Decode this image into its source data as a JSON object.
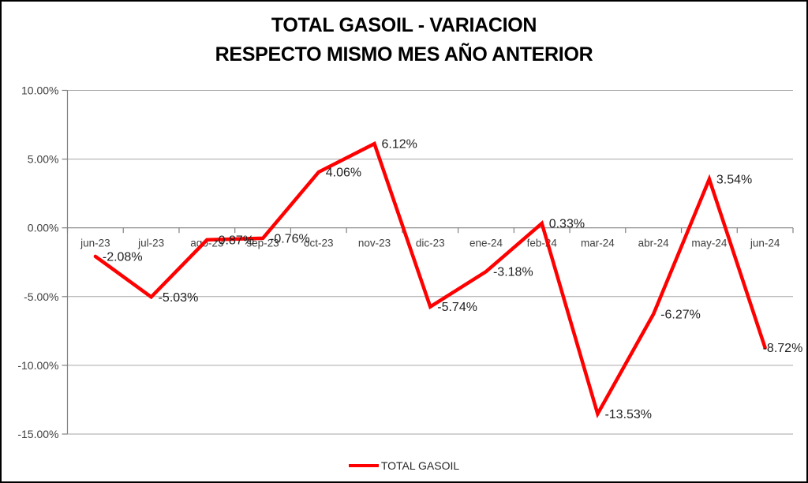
{
  "title": {
    "line1": "TOTAL GASOIL - VARIACION",
    "line2": "RESPECTO MISMO MES AÑO ANTERIOR"
  },
  "legend": {
    "label": "TOTAL GASOIL"
  },
  "colors": {
    "line": "#FF0000",
    "gridline": "#A6A6A6",
    "axis": "#808080",
    "axis_text": "#404040",
    "data_label_text": "#1f1f1f",
    "title_text": "#000000"
  },
  "chart_data": {
    "type": "line",
    "title": "TOTAL GASOIL - VARIACION RESPECTO MISMO MES AÑO ANTERIOR",
    "categories": [
      "jun-23",
      "jul-23",
      "ago-23",
      "sep-23",
      "oct-23",
      "nov-23",
      "dic-23",
      "ene-24",
      "feb-24",
      "mar-24",
      "abr-24",
      "may-24",
      "jun-24"
    ],
    "series": [
      {
        "name": "TOTAL GASOIL",
        "values": [
          -2.08,
          -5.03,
          -0.87,
          -0.76,
          4.06,
          6.12,
          -5.74,
          -3.18,
          0.33,
          -13.53,
          -6.27,
          3.54,
          -8.72
        ],
        "data_labels": [
          "-2.08%",
          "-5.03%",
          "-0.87%",
          "-0.76%",
          "4.06%",
          "6.12%",
          "-5.74%",
          "-3.18%",
          "0.33%",
          "-13.53%",
          "-6.27%",
          "3.54%",
          "-8.72%"
        ]
      }
    ],
    "xlabel": "",
    "ylabel": "",
    "ylim": [
      -15,
      10
    ],
    "ytick_step": 5,
    "ytick_labels": [
      "10.00%",
      "5.00%",
      "0.00%",
      "-5.00%",
      "-10.00%",
      "-15.00%"
    ],
    "grid": true,
    "legend_position": "bottom"
  }
}
